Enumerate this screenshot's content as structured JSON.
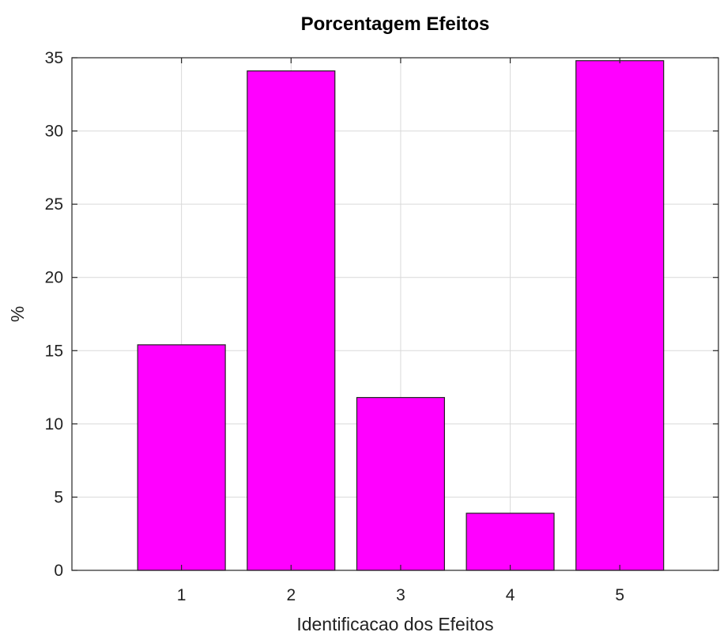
{
  "chart_data": {
    "type": "bar",
    "title": "Porcentagem Efeitos",
    "xlabel": "Identificacao dos Efeitos",
    "ylabel": "%",
    "categories": [
      "1",
      "2",
      "3",
      "4",
      "5"
    ],
    "values": [
      15.4,
      34.1,
      11.8,
      3.9,
      34.8
    ],
    "xlim": [
      0,
      5.9
    ],
    "ylim": [
      0,
      35
    ],
    "yticks": [
      0,
      5,
      10,
      15,
      20,
      25,
      30,
      35
    ],
    "ytick_labels": [
      "0",
      "5",
      "10",
      "15",
      "20",
      "25",
      "30",
      "35"
    ],
    "grid": true,
    "bar_color": "#ff00ff",
    "edge_color": "#222222"
  }
}
